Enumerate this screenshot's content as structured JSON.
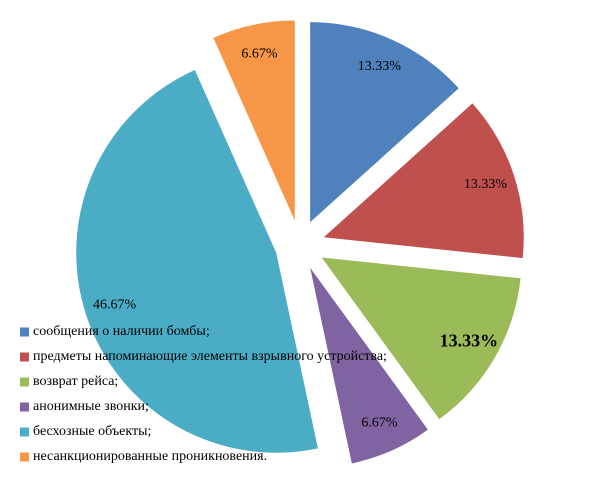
{
  "chart_data": {
    "type": "pie",
    "categories": [
      "сообщения о наличии бомбы;",
      "предметы напоминающие элементы взрывного устройства;",
      "возврат рейса;",
      "анонимные звонки;",
      "бесхозные объекты;",
      "несанкционированные проникновения."
    ],
    "values": [
      13.33,
      13.33,
      13.33,
      6.67,
      46.67,
      6.67
    ],
    "value_labels": [
      "13.33%",
      "13.33%",
      "13.33%",
      "6.67%",
      "46.67%",
      "6.67%"
    ],
    "colors": [
      "#4f81bd",
      "#c0504d",
      "#9bbb59",
      "#8064a2",
      "#4bacc6",
      "#f79646"
    ],
    "legend": "lower-left"
  }
}
